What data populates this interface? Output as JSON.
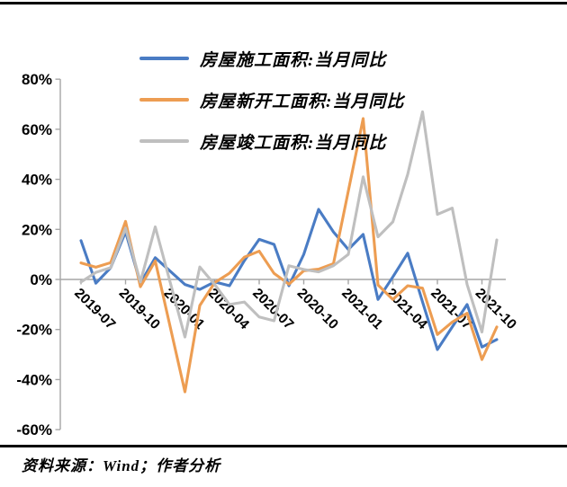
{
  "chart_data": {
    "type": "line",
    "x": [
      "2019-07",
      "2019-08",
      "2019-09",
      "2019-10",
      "2019-11",
      "2019-12",
      "2020-01",
      "2020-02",
      "2020-03",
      "2020-04",
      "2020-05",
      "2020-06",
      "2020-07",
      "2020-08",
      "2020-09",
      "2020-10",
      "2020-11",
      "2020-12",
      "2021-01",
      "2021-02",
      "2021-03",
      "2021-04",
      "2021-05",
      "2021-06",
      "2021-07",
      "2021-08",
      "2021-09",
      "2021-10",
      "2021-11"
    ],
    "x_tick_labels": [
      "2019-07",
      "2019-10",
      "2020-01",
      "2020-04",
      "2020-07",
      "2020-10",
      "2021-01",
      "2021-04",
      "2021-07",
      "2021-10"
    ],
    "y_ticks": [
      80,
      60,
      40,
      20,
      0,
      -20,
      -40,
      -60
    ],
    "y_tick_suffix": "%",
    "ylim": [
      -60,
      80
    ],
    "grid": false,
    "legend_position": "top-left-inside",
    "series": [
      {
        "name": "房屋施工面积:当月同比",
        "color": "#4A7CC4",
        "values": [
          15.5,
          -1.5,
          4.7,
          19,
          -1.5,
          8.7,
          null,
          -2,
          -4,
          -1,
          -2.5,
          7.5,
          16,
          14,
          -2.5,
          10,
          28,
          19,
          12,
          18,
          -8,
          1,
          10.5,
          -9,
          -28,
          -19,
          -10,
          -27,
          -24
        ]
      },
      {
        "name": "房屋新开工面积:当月同比",
        "color": "#ED9D52",
        "values": [
          6.6,
          4.9,
          6.7,
          23.2,
          -2.9,
          7.4,
          null,
          -44.9,
          -10.4,
          -1.3,
          2.5,
          8.9,
          11.3,
          2.4,
          -1.9,
          3.5,
          4.1,
          6.3,
          null,
          64.3,
          -2.2,
          -8,
          -2.5,
          -3.5,
          -22,
          -17,
          -13.5,
          -32,
          -19
        ]
      },
      {
        "name": "房屋竣工面积:当月同比",
        "color": "#BFBFBF",
        "values": [
          -1,
          2.8,
          4.7,
          20.5,
          -1,
          21,
          null,
          -23,
          5,
          -2,
          -10,
          -9,
          -15,
          -16.5,
          5.5,
          4,
          3,
          5.5,
          10,
          41,
          17,
          23,
          42,
          67,
          26,
          28.5,
          -2,
          -21,
          15.8
        ]
      }
    ],
    "axis_color": "#A6A6A6",
    "label_color": "#000000"
  },
  "source_note": "资料来源：Wind；作者分析"
}
